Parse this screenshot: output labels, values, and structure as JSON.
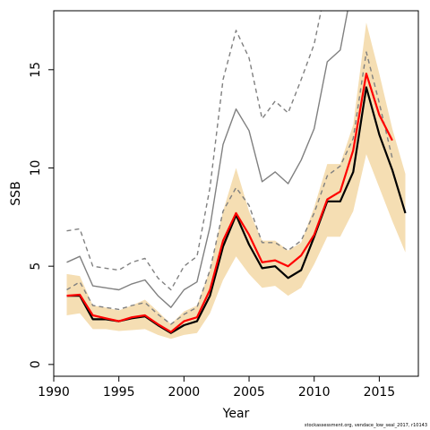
{
  "chart_data": {
    "type": "line",
    "xlabel": "Year",
    "ylabel": "SSB",
    "xlim": [
      1990,
      2018
    ],
    "ylim": [
      0,
      18
    ],
    "xticks": [
      1990,
      1995,
      2000,
      2005,
      2010,
      2015
    ],
    "yticks": [
      0,
      5,
      10,
      15
    ],
    "grid": false,
    "legend": "none",
    "credit": "stockassessment.org,  vendace_low_seal_2017,  r10143",
    "colors": {
      "band": "#f5deb3",
      "estimate": "#000000",
      "red": "#ff0000",
      "grey": "#808080",
      "dashed": "#808080"
    },
    "series": [
      {
        "id": "band",
        "x": [
          1991,
          1992,
          1993,
          1994,
          1995,
          1996,
          1997,
          1998,
          1999,
          2000,
          2001,
          2002,
          2003,
          2004,
          2005,
          2006,
          2007,
          2008,
          2009,
          2010,
          2011,
          2012,
          2013,
          2014,
          2015,
          2016,
          2017
        ],
        "low": [
          2.5,
          2.6,
          1.8,
          1.8,
          1.7,
          1.75,
          1.8,
          1.5,
          1.3,
          1.5,
          1.6,
          2.6,
          4.3,
          5.5,
          4.6,
          3.9,
          4.0,
          3.5,
          3.9,
          5.1,
          6.5,
          6.5,
          7.8,
          10.7,
          9.0,
          7.3,
          5.7
        ],
        "high": [
          4.6,
          4.5,
          3.0,
          2.9,
          2.75,
          3.0,
          3.3,
          2.7,
          2.05,
          2.7,
          3.0,
          4.8,
          7.8,
          10.0,
          7.8,
          6.3,
          6.3,
          5.8,
          6.2,
          8.0,
          10.2,
          10.2,
          12.2,
          17.4,
          14.8,
          12.0,
          9.7
        ]
      },
      {
        "id": "estimate",
        "x": [
          1991,
          1992,
          1993,
          1994,
          1995,
          1996,
          1997,
          1998,
          1999,
          2000,
          2001,
          2002,
          2003,
          2004,
          2005,
          2006,
          2007,
          2008,
          2009,
          2010,
          2011,
          2012,
          2013,
          2014,
          2015,
          2016,
          2017
        ],
        "y": [
          3.5,
          3.5,
          2.3,
          2.3,
          2.2,
          2.35,
          2.45,
          2.0,
          1.6,
          2.0,
          2.2,
          3.5,
          6.0,
          7.6,
          6.1,
          4.9,
          5.0,
          4.4,
          4.8,
          6.5,
          8.3,
          8.3,
          9.8,
          14.1,
          11.7,
          9.9,
          7.7
        ]
      },
      {
        "id": "red",
        "x": [
          1991,
          1992,
          1993,
          1994,
          1995,
          1996,
          1997,
          1998,
          1999,
          2000,
          2001,
          2002,
          2003,
          2004,
          2005,
          2006,
          2007,
          2008,
          2009,
          2010,
          2011,
          2012,
          2013,
          2014,
          2015,
          2016
        ],
        "y": [
          3.5,
          3.55,
          2.5,
          2.35,
          2.2,
          2.4,
          2.5,
          2.05,
          1.65,
          2.2,
          2.4,
          3.8,
          6.3,
          7.7,
          6.6,
          5.2,
          5.3,
          5.0,
          5.55,
          6.6,
          8.4,
          8.8,
          10.9,
          14.8,
          12.7,
          11.4
        ]
      },
      {
        "id": "grey_upper",
        "x": [
          1991,
          1992,
          1993,
          1994,
          1995,
          1996,
          1997,
          1998,
          1999,
          2000,
          2001,
          2002,
          2003,
          2004,
          2005,
          2006,
          2007,
          2008,
          2009,
          2010,
          2011,
          2012,
          2013
        ],
        "y": [
          5.2,
          5.5,
          4.0,
          3.9,
          3.8,
          4.1,
          4.3,
          3.5,
          2.9,
          3.8,
          4.2,
          7.0,
          11.2,
          13.0,
          11.9,
          9.3,
          9.8,
          9.2,
          10.4,
          12.0,
          15.4,
          16.0,
          19.5
        ]
      },
      {
        "id": "grey_dashed_upper",
        "x": [
          1991,
          1992,
          1993,
          1994,
          1995,
          1996,
          1997,
          1998,
          1999,
          2000,
          2001,
          2002,
          2003,
          2004,
          2005,
          2006,
          2007,
          2008,
          2009,
          2010,
          2011
        ],
        "y": [
          6.8,
          6.9,
          5.0,
          4.9,
          4.8,
          5.2,
          5.4,
          4.4,
          3.8,
          5.0,
          5.5,
          9.0,
          14.5,
          17.0,
          15.6,
          12.5,
          13.4,
          12.8,
          14.5,
          16.3,
          19.5
        ]
      },
      {
        "id": "grey_dashed_lower",
        "x": [
          1991,
          1992,
          1993,
          1994,
          1995,
          1996,
          1997,
          1998,
          1999,
          2000,
          2001,
          2002,
          2003,
          2004,
          2005,
          2006,
          2007,
          2008,
          2009,
          2010,
          2011,
          2012,
          2013,
          2014,
          2015,
          2016
        ],
        "y": [
          3.8,
          4.2,
          3.0,
          2.9,
          2.8,
          3.0,
          3.15,
          2.55,
          2.05,
          2.55,
          2.9,
          4.8,
          7.8,
          9.0,
          8.1,
          6.2,
          6.2,
          5.8,
          6.3,
          7.7,
          9.6,
          10.1,
          11.5,
          15.9,
          13.3,
          10.5
        ]
      }
    ]
  }
}
